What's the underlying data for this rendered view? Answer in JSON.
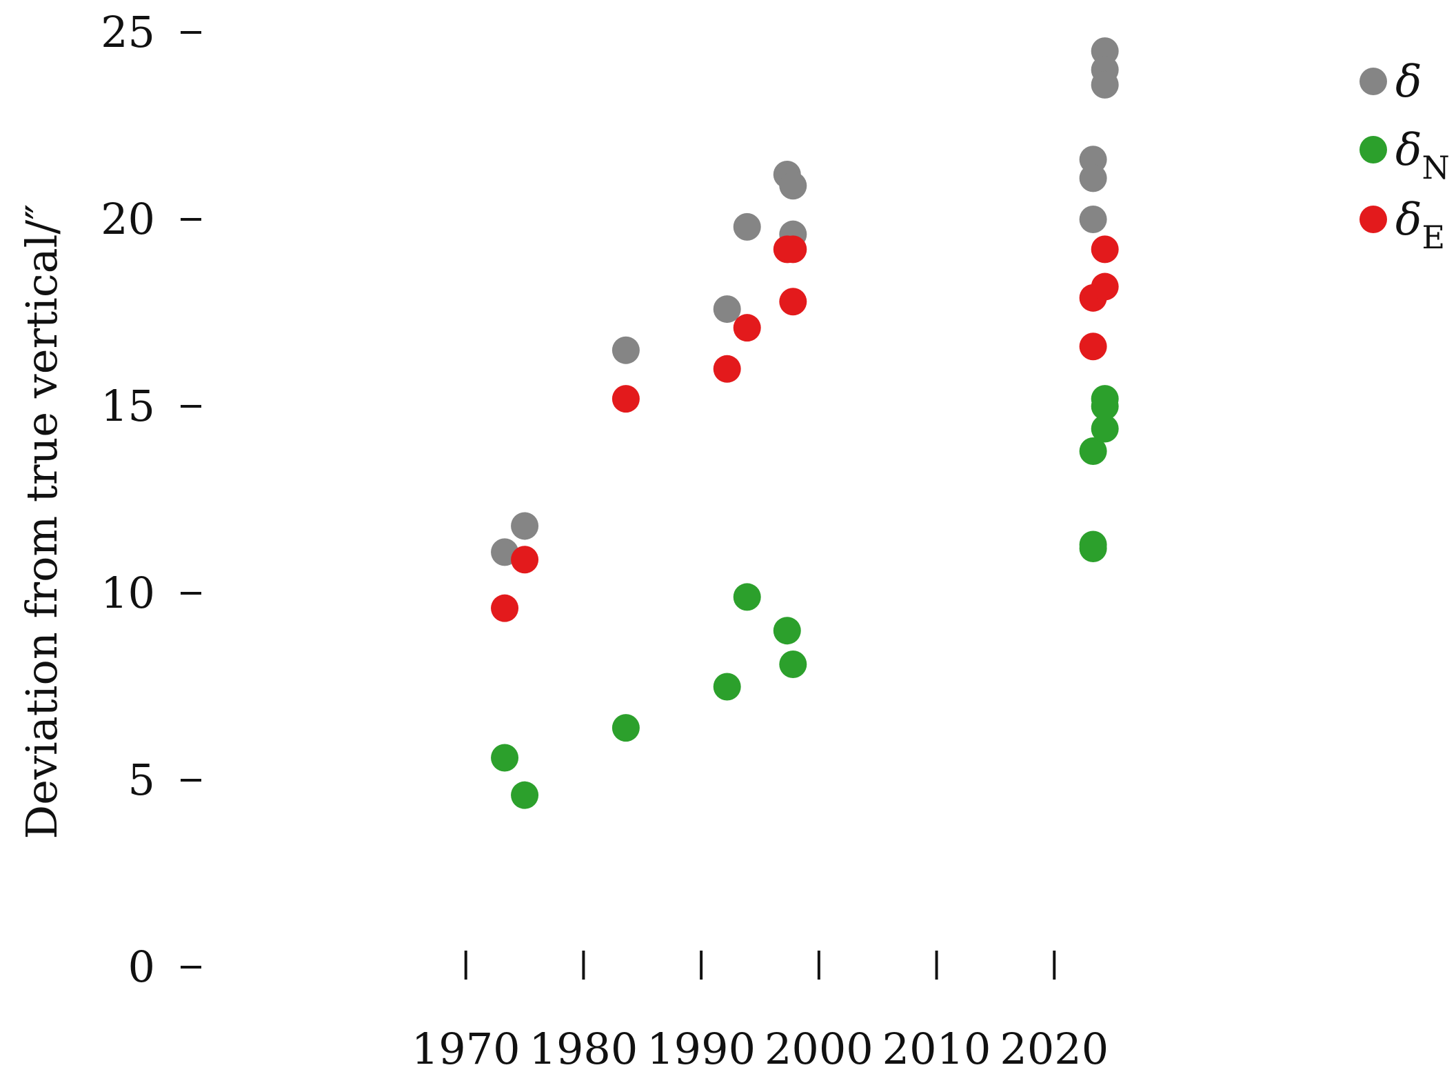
{
  "chart_data": {
    "type": "scatter",
    "title": "",
    "xlabel": "",
    "ylabel": "Deviation from true vertical/″",
    "xlim": [
      1960,
      2030
    ],
    "ylim": [
      0,
      25
    ],
    "x_ticks": [
      "1970",
      "1980",
      "1990",
      "2000",
      "2010",
      "2020"
    ],
    "y_ticks": [
      "0",
      "5",
      "10",
      "15",
      "20",
      "25"
    ],
    "grid": false,
    "legend_position": "top-right",
    "series": [
      {
        "name": "δ",
        "color": "#858585",
        "points": [
          {
            "x": 1973.3,
            "y": 11.1
          },
          {
            "x": 1975.0,
            "y": 11.8
          },
          {
            "x": 1983.6,
            "y": 16.5
          },
          {
            "x": 1992.2,
            "y": 17.6
          },
          {
            "x": 1993.9,
            "y": 19.8
          },
          {
            "x": 1997.3,
            "y": 21.2
          },
          {
            "x": 1997.8,
            "y": 20.9
          },
          {
            "x": 1997.8,
            "y": 19.6
          },
          {
            "x": 2023.3,
            "y": 21.6
          },
          {
            "x": 2023.3,
            "y": 21.1
          },
          {
            "x": 2023.3,
            "y": 20.0
          },
          {
            "x": 2024.3,
            "y": 24.5
          },
          {
            "x": 2024.3,
            "y": 24.0
          },
          {
            "x": 2024.3,
            "y": 23.6
          }
        ]
      },
      {
        "name": "δ",
        "subscript": "N",
        "color": "#2ca02c",
        "points": [
          {
            "x": 1973.3,
            "y": 5.6
          },
          {
            "x": 1975.0,
            "y": 4.6
          },
          {
            "x": 1983.6,
            "y": 6.4
          },
          {
            "x": 1992.2,
            "y": 7.5
          },
          {
            "x": 1993.9,
            "y": 9.9
          },
          {
            "x": 1997.3,
            "y": 9.0
          },
          {
            "x": 1997.8,
            "y": 8.1
          },
          {
            "x": 2023.3,
            "y": 13.8
          },
          {
            "x": 2023.3,
            "y": 11.3
          },
          {
            "x": 2023.3,
            "y": 11.2
          },
          {
            "x": 2024.3,
            "y": 15.2
          },
          {
            "x": 2024.3,
            "y": 15.0
          },
          {
            "x": 2024.3,
            "y": 14.4
          }
        ]
      },
      {
        "name": "δ",
        "subscript": "E",
        "color": "#e31a1c",
        "points": [
          {
            "x": 1973.3,
            "y": 9.6
          },
          {
            "x": 1975.0,
            "y": 10.9
          },
          {
            "x": 1983.6,
            "y": 15.2
          },
          {
            "x": 1992.2,
            "y": 16.0
          },
          {
            "x": 1993.9,
            "y": 17.1
          },
          {
            "x": 1997.3,
            "y": 19.2
          },
          {
            "x": 1997.8,
            "y": 19.2
          },
          {
            "x": 1997.8,
            "y": 17.8
          },
          {
            "x": 2023.3,
            "y": 17.9
          },
          {
            "x": 2023.3,
            "y": 16.6
          },
          {
            "x": 2024.3,
            "y": 19.2
          },
          {
            "x": 2024.3,
            "y": 18.2
          }
        ]
      }
    ]
  }
}
